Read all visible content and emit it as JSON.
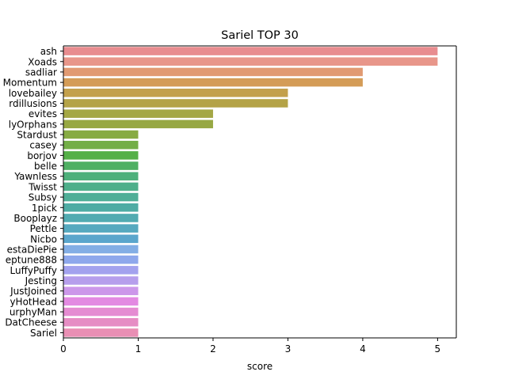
{
  "chart_data": {
    "type": "bar",
    "orientation": "horizontal",
    "title": "Sariel TOP 30",
    "xlabel": "score",
    "ylabel": "",
    "xlim": [
      0,
      5.25
    ],
    "xticks": [
      0,
      1,
      2,
      3,
      4,
      5
    ],
    "grid": false,
    "categories": [
      "ash",
      "Xoads",
      "sadliar",
      "Momentum",
      "lovebailey",
      "rdillusions",
      "evites",
      "lyOrphans",
      "Stardust",
      "casey",
      "borjov",
      "belle",
      "Yawnless",
      "Twisst",
      "Subsy",
      "1pick",
      "Booplayz",
      "Pettle",
      "Nicbo",
      "estaDiePie",
      "eptune888",
      "LuffyPuffy",
      "Jesting",
      "JustJoined",
      "yHotHead",
      "urphyMan",
      "DatCheese",
      "Sariel"
    ],
    "values": [
      5,
      5,
      4,
      4,
      3,
      3,
      2,
      2,
      1,
      1,
      1,
      1,
      1,
      1,
      1,
      1,
      1,
      1,
      1,
      1,
      1,
      1,
      1,
      1,
      1,
      1,
      1,
      1
    ],
    "colors": [
      "#e88c8f",
      "#e8968a",
      "#e19a72",
      "#d49c57",
      "#c3a04c",
      "#b4a347",
      "#a4a744",
      "#97a843",
      "#87ab43",
      "#73ae47",
      "#55b048",
      "#4fb063",
      "#4db07b",
      "#4eaf8b",
      "#4fae97",
      "#4faca4",
      "#52abb1",
      "#56a9bf",
      "#5aa6cc",
      "#83aee5",
      "#8ea8ec",
      "#a3a2ee",
      "#b69eec",
      "#cc97ea",
      "#e38ae2",
      "#e58cd2",
      "#e68dc4",
      "#e98fb4"
    ]
  }
}
